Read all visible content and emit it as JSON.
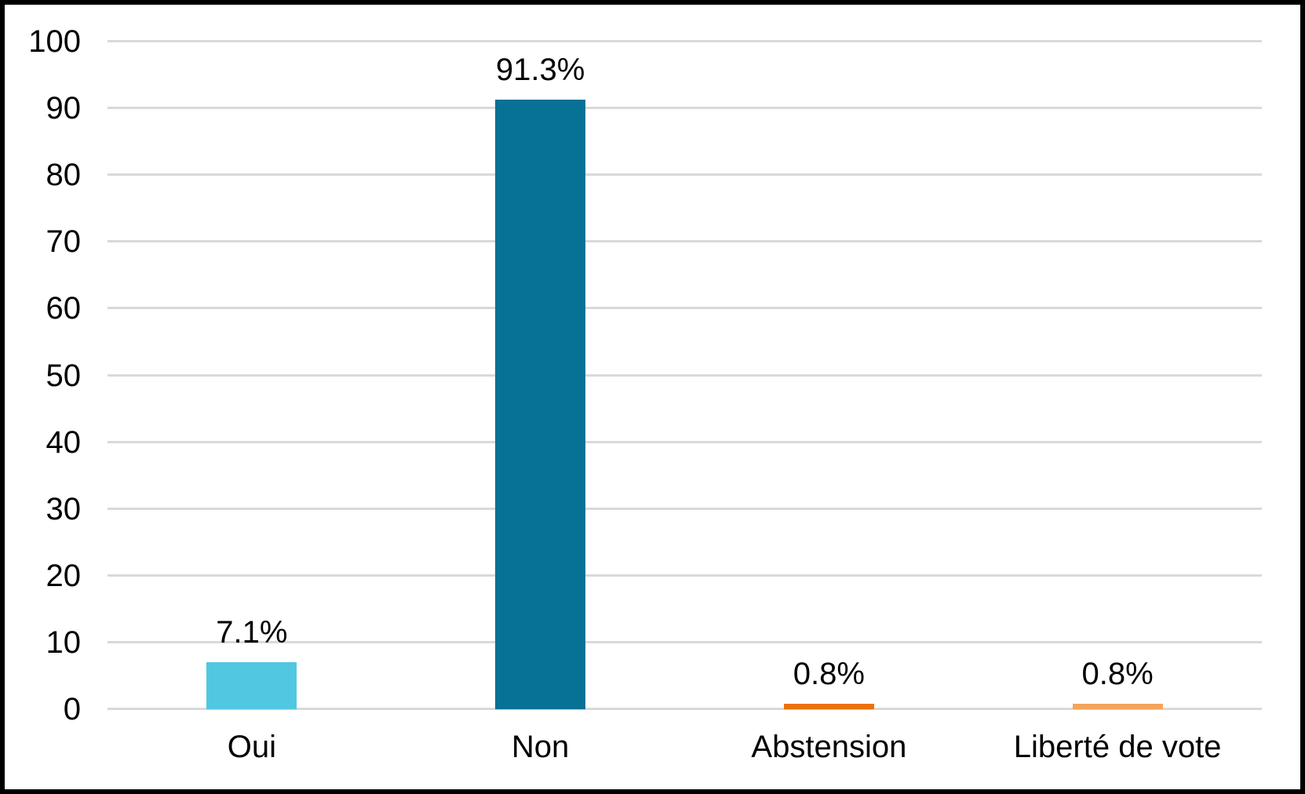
{
  "chart": {
    "background_color": "#FFFFFF",
    "border_color": "#000000",
    "gridline_color": "#D9D9D9",
    "text_color": "#000000"
  },
  "chart_data": {
    "type": "bar",
    "title": "",
    "xlabel": "",
    "ylabel": "",
    "categories": [
      "Oui",
      "Non",
      "Abstension",
      "Liberté de vote"
    ],
    "values": [
      7.1,
      91.3,
      0.8,
      0.8
    ],
    "value_labels": [
      "7.1%",
      "91.3%",
      "0.8%",
      "0.8%"
    ],
    "bar_colors": [
      "#52C7E2",
      "#087196",
      "#EC720A",
      "#F5A45C"
    ],
    "ylim": [
      0,
      100
    ],
    "ytick_interval": 10,
    "ytick_labels": [
      "0",
      "10",
      "20",
      "30",
      "40",
      "50",
      "60",
      "70",
      "80",
      "90",
      "100"
    ],
    "grid": "horizontal",
    "legend": "none"
  }
}
